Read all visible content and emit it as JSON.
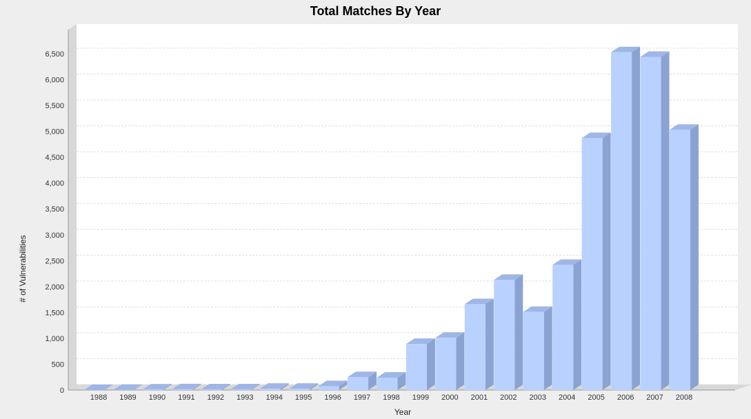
{
  "chart_data": {
    "type": "bar",
    "title": "Total Matches By Year",
    "xlabel": "Year",
    "ylabel": "# of Vulnerabilities",
    "ylim": [
      0,
      6500
    ],
    "y_ticks": [
      "0",
      "500",
      "1,000",
      "1,500",
      "2,000",
      "2,500",
      "3,000",
      "3,500",
      "4,000",
      "4,500",
      "5,000",
      "5,500",
      "6,000",
      "6,500"
    ],
    "categories": [
      "1988",
      "1989",
      "1990",
      "1991",
      "1992",
      "1993",
      "1994",
      "1995",
      "1996",
      "1997",
      "1998",
      "1999",
      "2000",
      "2001",
      "2002",
      "2003",
      "2004",
      "2005",
      "2006",
      "2007",
      "2008"
    ],
    "values": [
      2,
      3,
      11,
      15,
      13,
      13,
      25,
      25,
      75,
      250,
      240,
      890,
      1010,
      1660,
      2130,
      1510,
      2420,
      4870,
      6530,
      6440,
      5030
    ],
    "grid": true,
    "colors": {
      "bar_front": "#b9d1ff",
      "bar_side": "#8aa3d2",
      "bar_top": "#9fb6e6",
      "grid": "#dcdcdc",
      "plot_bg": "#ffffff",
      "wall": "#d8d8d8"
    }
  }
}
